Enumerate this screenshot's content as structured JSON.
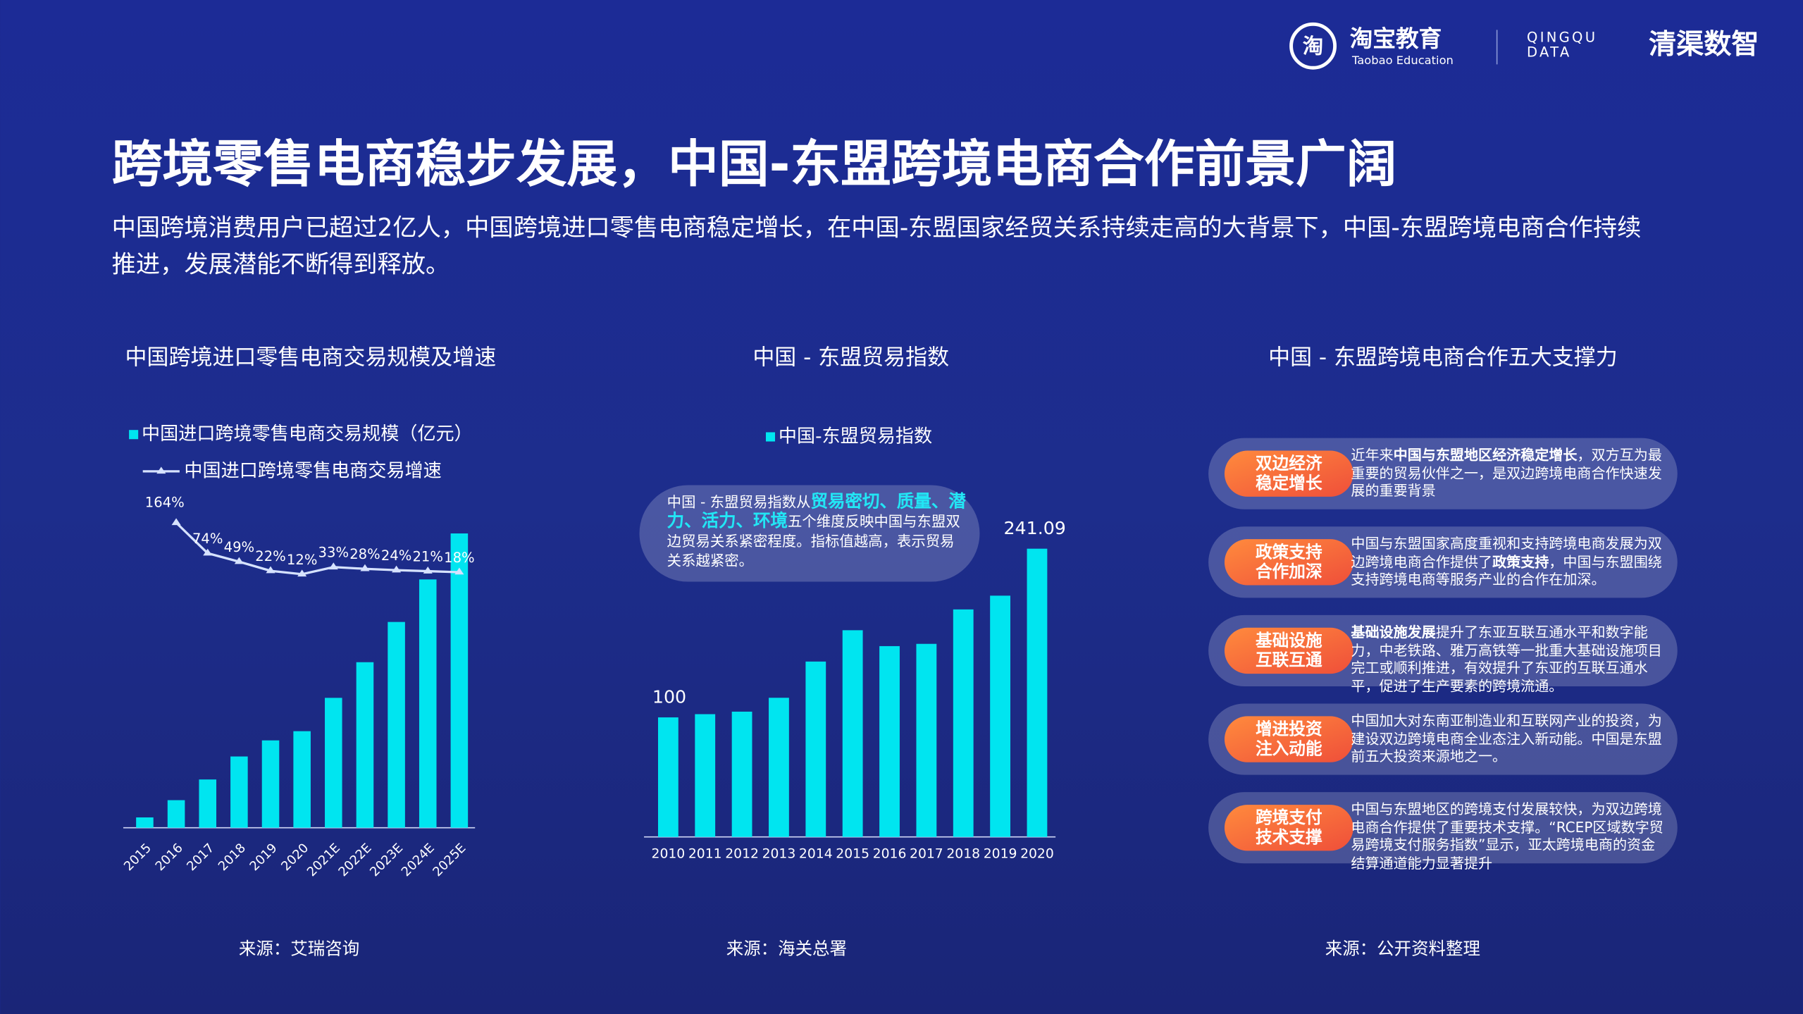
{
  "header": {
    "logo_icon": "淘",
    "logo_cn": "淘宝教育",
    "logo_en": "Taobao Education",
    "partner_en_1": "QINGQU",
    "partner_en_2": "DATA",
    "partner_cn": "清渠数智"
  },
  "title": "跨境零售电商稳步发展，中国-东盟跨境电商合作前景广阔",
  "subtitle": "中国跨境消费用户已超过2亿人，中国跨境进口零售电商稳定增长，在中国-东盟国家经贸关系持续走高的大背景下，中国-东盟跨境电商合作持续推进，发展潜能不断得到释放。",
  "panels": [
    {
      "title": "中国跨境进口零售电商交易规模及增速",
      "source": "来源：艾瑞咨询"
    },
    {
      "title": "中国 - 东盟贸易指数",
      "source": "来源：海关总署"
    },
    {
      "title": "中国 - 东盟跨境电商合作五大支撑力",
      "source": "来源：公开资料整理"
    }
  ],
  "chart_data": [
    {
      "type": "bar_line",
      "categories": [
        "2015",
        "2016",
        "2017",
        "2018",
        "2019",
        "2020",
        "2021E",
        "2022E",
        "2023E",
        "2024E",
        "2025E"
      ],
      "series": [
        {
          "name": "中国进口跨境零售电商交易规模（亿元）",
          "color": "#00e5f0",
          "values": [
            9,
            24,
            42,
            62,
            76,
            84,
            113,
            144,
            179,
            216,
            256
          ]
        },
        {
          "name": "中国进口跨境零售电商交易增速",
          "type": "line",
          "axis": "y2",
          "color": "#d6e2ff",
          "values": [
            null,
            164,
            74,
            49,
            22,
            12,
            33,
            28,
            24,
            21,
            18
          ],
          "value_labels": [
            null,
            "164%",
            "74%",
            "49%",
            "22%",
            "12%",
            "33%",
            "28%",
            "24%",
            "21%",
            "18%"
          ]
        }
      ],
      "ylim": [
        0,
        270
      ],
      "y2lim": [
        0,
        180
      ]
    },
    {
      "type": "bar",
      "categories": [
        "2010",
        "2011",
        "2012",
        "2013",
        "2014",
        "2015",
        "2016",
        "2017",
        "2018",
        "2019",
        "2020"
      ],
      "series": [
        {
          "name": "中国-东盟贸易指数",
          "color": "#00e5f0",
          "values": [
            100,
            102.7,
            104.8,
            116.4,
            146.7,
            172.9,
            159.6,
            161.5,
            190.3,
            201.8,
            241.09
          ],
          "value_labels": [
            "100",
            null,
            null,
            null,
            null,
            null,
            null,
            null,
            null,
            null,
            "241.09"
          ]
        }
      ],
      "ylim": [
        0,
        250
      ],
      "annotation": [
        {
          "text": "中国 - 东盟贸易指数从"
        },
        {
          "text": "贸易密切、质量、潜力、活力、环境",
          "strong": true
        },
        {
          "text": "五个维度反映中国与东盟双边贸易关系紧密程度。指标值越高，表示贸易关系越紧密。"
        }
      ]
    }
  ],
  "pillars": [
    {
      "badge": [
        "双边经济",
        "稳定增长"
      ],
      "text": [
        {
          "text": "近年来"
        },
        {
          "text": "中国与东盟地区经济稳定增长",
          "strong": true
        },
        {
          "text": "，双方互为最重要的贸易伙伴之一，是双边跨境电商合作快速发展的重要背景"
        }
      ]
    },
    {
      "badge": [
        "政策支持",
        "合作加深"
      ],
      "text": [
        {
          "text": "中国与东盟国家高度重视和支持跨境电商发展为双边跨境电商合作提供了"
        },
        {
          "text": "政策支持",
          "strong": true
        },
        {
          "text": "，中国与东盟围绕支持跨境电商等服务产业的合作在加深。"
        }
      ]
    },
    {
      "badge": [
        "基础设施",
        "互联互通"
      ],
      "text": [
        {
          "text": "基础设施发展",
          "strong": true
        },
        {
          "text": "提升了东亚互联互通水平和数字能力，中老铁路、雅万高铁等一批重大基础设施项目完工或顺利推进，有效提升了东亚的互联互通水平，促进了生产要素的跨境流通。"
        }
      ]
    },
    {
      "badge": [
        "增进投资",
        "注入动能"
      ],
      "text": [
        {
          "text": "中国加大对东南亚制造业和互联网产业的投资，为建设双边跨境电商全业态注入新动能。中国是东盟前五大投资来源地之一。"
        }
      ]
    },
    {
      "badge": [
        "跨境支付",
        "技术支撑"
      ],
      "text": [
        {
          "text": "中国与东盟地区的跨境支付发展较快，为双边跨境电商合作提供了重要技术支撑。“RCEP区域数字贸易跨境支付服务指数”显示，亚太跨境电商的资金结算通道能力显著提升"
        }
      ]
    }
  ]
}
